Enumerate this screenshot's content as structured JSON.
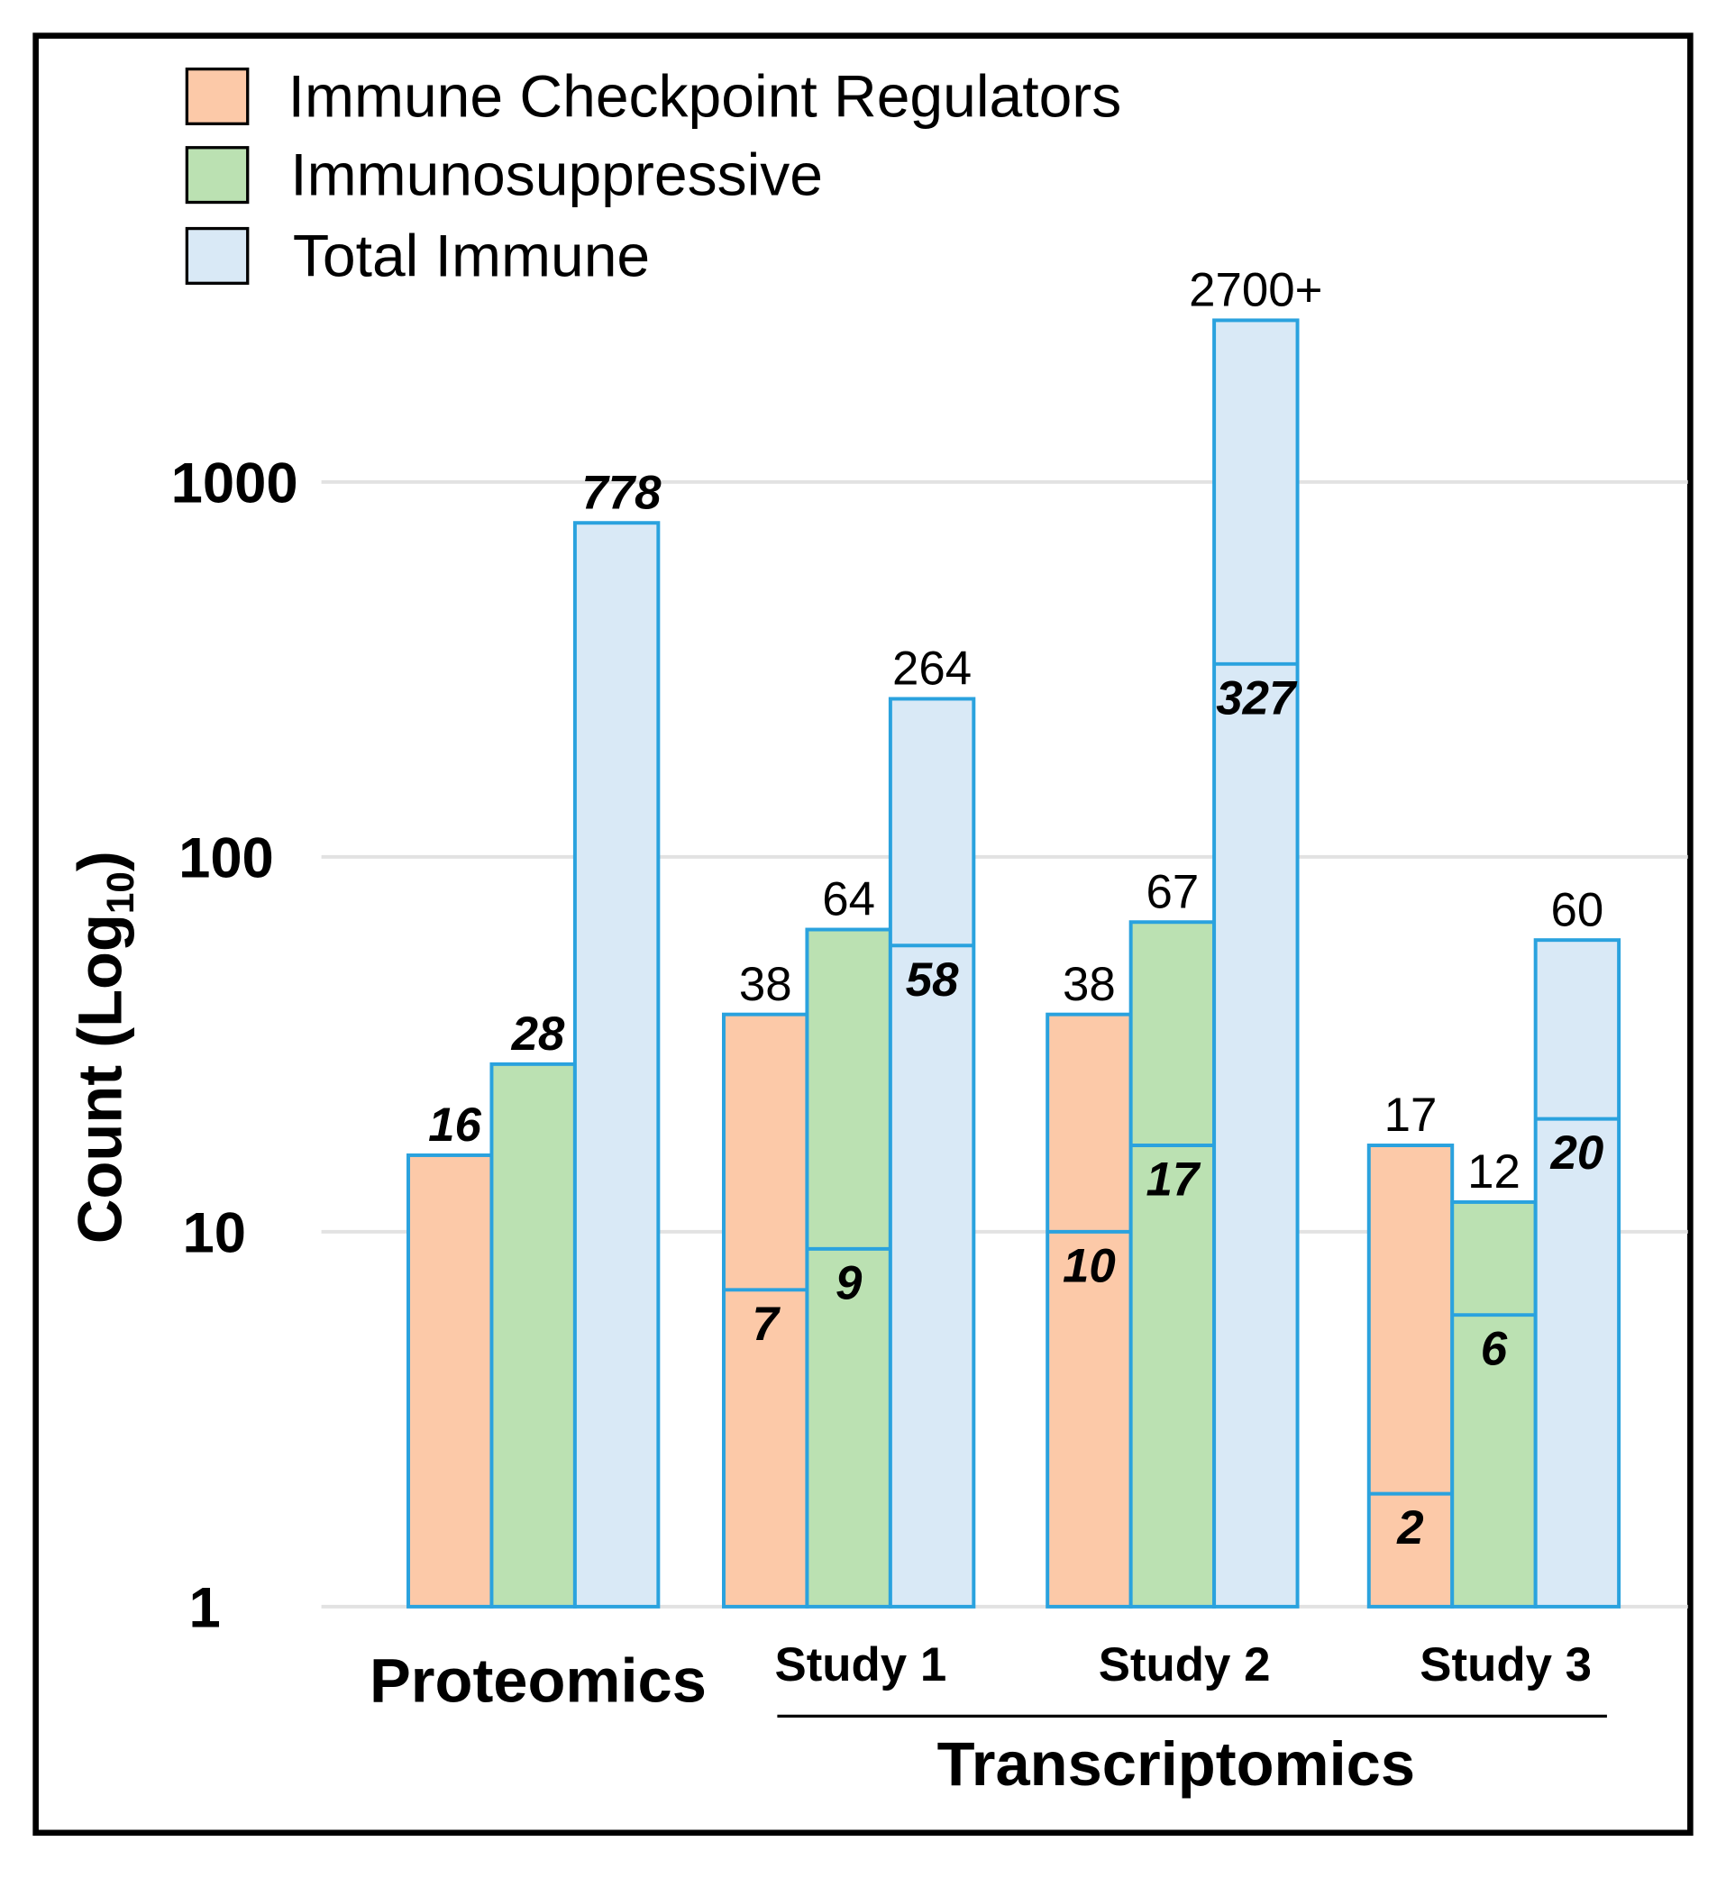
{
  "chart_data": {
    "type": "bar",
    "title": "",
    "xlabel": "",
    "ylabel": "Count (Log",
    "ylabel_sub": "10",
    "ylabel_close": ")",
    "yscale": "log",
    "ylim": [
      1,
      3000
    ],
    "yticks": [
      1,
      10,
      100,
      1000
    ],
    "ytick_labels": [
      "1",
      "10",
      "100",
      "1000"
    ],
    "grid": true,
    "legend_position": "top-left",
    "colors": {
      "Immune Checkpoint Regulators": "#fcc9a8",
      "Immunosuppressive": "#bbe1b2",
      "Total Immune": "#d9e9f6",
      "outline": "#2aa2de"
    },
    "series_names": [
      "Immune Checkpoint Regulators",
      "Immunosuppressive",
      "Total Immune"
    ],
    "categories": [
      "Proteomics",
      "Study 1",
      "Study 2",
      "Study 3"
    ],
    "supergroup_label": "Transcriptomics",
    "supergroup_members": [
      "Study 1",
      "Study 2",
      "Study 3"
    ],
    "series": [
      {
        "name": "Immune Checkpoint Regulators",
        "values": [
          16,
          38,
          38,
          17
        ],
        "inner_values": [
          null,
          7,
          10,
          2
        ]
      },
      {
        "name": "Immunosuppressive",
        "values": [
          28,
          64,
          67,
          12
        ],
        "inner_values": [
          null,
          9,
          17,
          6
        ]
      },
      {
        "name": "Total Immune",
        "values": [
          778,
          264,
          2700,
          60
        ],
        "inner_values": [
          null,
          58,
          327,
          20
        ]
      }
    ],
    "value_labels": [
      [
        "16",
        "38",
        "38",
        "17"
      ],
      [
        "28",
        "64",
        "67",
        "12"
      ],
      [
        "778",
        "264",
        "2700+",
        "60"
      ]
    ],
    "inner_labels": [
      [
        null,
        "7",
        "10",
        "2"
      ],
      [
        null,
        "9",
        "17",
        "6"
      ],
      [
        null,
        "58",
        "327",
        "20"
      ]
    ]
  }
}
